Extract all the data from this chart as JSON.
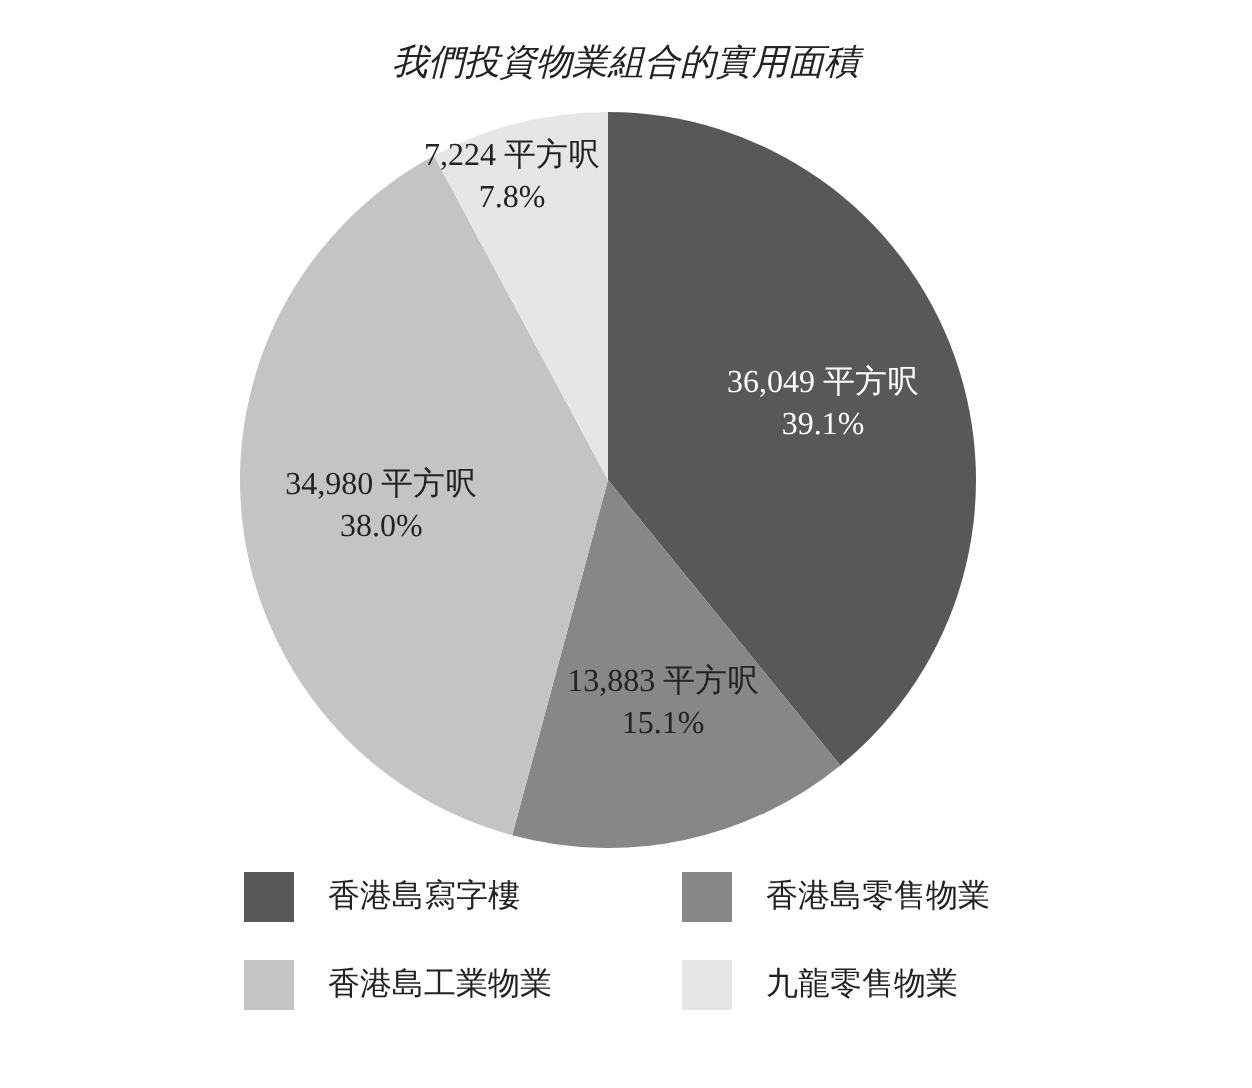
{
  "chart_data": {
    "type": "pie",
    "title": "我們投資物業組合的實用面積",
    "categories": [
      "香港島寫字樓",
      "香港島零售物業",
      "香港島工業物業",
      "九龍零售物業"
    ],
    "values": [
      36049,
      13883,
      34980,
      7224
    ],
    "colors": [
      "#58575a",
      "#87878a",
      "#c4c4c6",
      "#e5e6e6"
    ],
    "value_labels": [
      "36,049 平方呎\n39.1%",
      "13,883 平方呎\n15.1%",
      "34,980 平方呎\n38.0%",
      "7,224 平方呎\n7.8%"
    ],
    "legend": "bottom"
  }
}
